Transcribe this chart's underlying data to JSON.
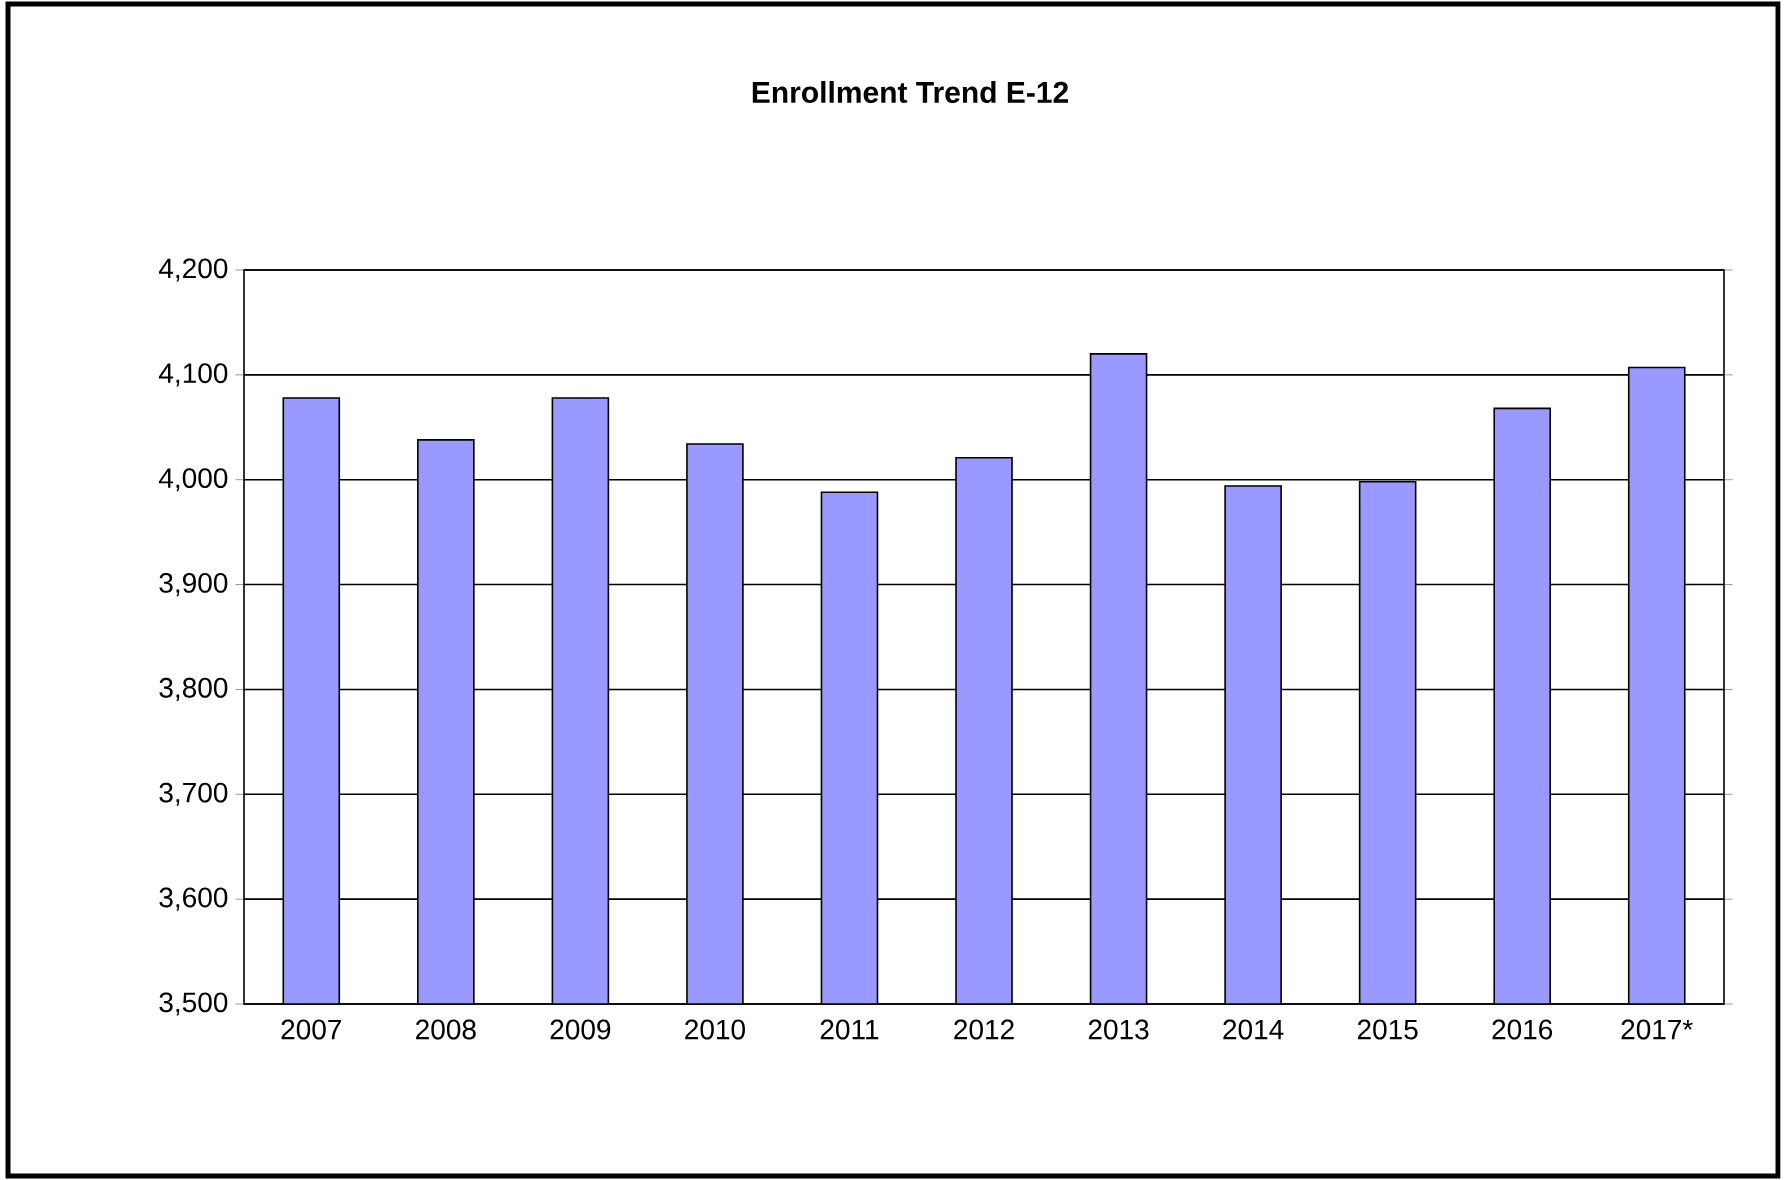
{
  "chart_data": {
    "type": "bar",
    "title": "Enrollment Trend E-12",
    "categories": [
      "2007",
      "2008",
      "2009",
      "2010",
      "2011",
      "2012",
      "2013",
      "2014",
      "2015",
      "2016",
      "2017*"
    ],
    "values": [
      4078,
      4038,
      4078,
      4034,
      3988,
      4021,
      4120,
      3994,
      3998,
      4068,
      4107
    ],
    "color": "#9999ff",
    "ylim": [
      3500,
      4200
    ],
    "yticks": [
      {
        "value": 3500,
        "label": "3,500"
      },
      {
        "value": 3600,
        "label": "3,600"
      },
      {
        "value": 3700,
        "label": "3,700"
      },
      {
        "value": 3800,
        "label": "3,800"
      },
      {
        "value": 3900,
        "label": "3,900"
      },
      {
        "value": 4000,
        "label": "4,000"
      },
      {
        "value": 4100,
        "label": "4,100"
      },
      {
        "value": 4200,
        "label": "4,200"
      }
    ],
    "grid": "y"
  }
}
